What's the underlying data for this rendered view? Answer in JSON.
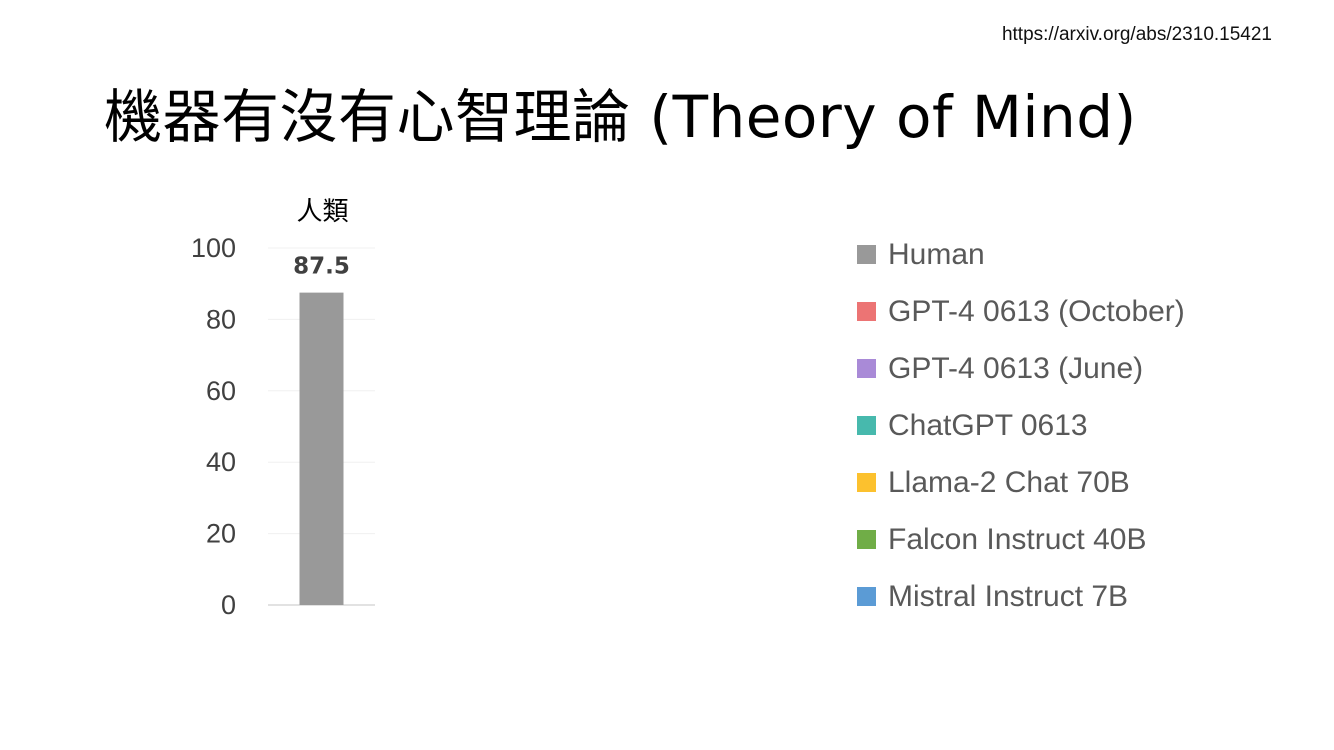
{
  "source_url": "https://arxiv.org/abs/2310.15421",
  "slide_title": "機器有沒有心智理論 (Theory of Mind)",
  "chart_data": {
    "type": "bar",
    "categories": [
      "人類"
    ],
    "series": [
      {
        "name": "Human",
        "values": [
          87.5
        ],
        "color": "#999999"
      }
    ],
    "ylim": [
      0,
      100
    ],
    "yticks": [
      0,
      20,
      40,
      60,
      80,
      100
    ],
    "data_labels": [
      "87.5"
    ],
    "grid": true,
    "legend_position": "right",
    "legend": [
      {
        "label": "Human",
        "color": "#999999"
      },
      {
        "label": "GPT-4 0613 (October)",
        "color": "#ec7474"
      },
      {
        "label": "GPT-4 0613 (June)",
        "color": "#a98ad7"
      },
      {
        "label": "ChatGPT 0613",
        "color": "#47b9ad"
      },
      {
        "label": "Llama-2 Chat 70B",
        "color": "#fcc12e"
      },
      {
        "label": "Falcon Instruct 40B",
        "color": "#70ad47"
      },
      {
        "label": "Mistral Instruct 7B",
        "color": "#5b9bd5"
      }
    ],
    "annotation": "人類"
  }
}
